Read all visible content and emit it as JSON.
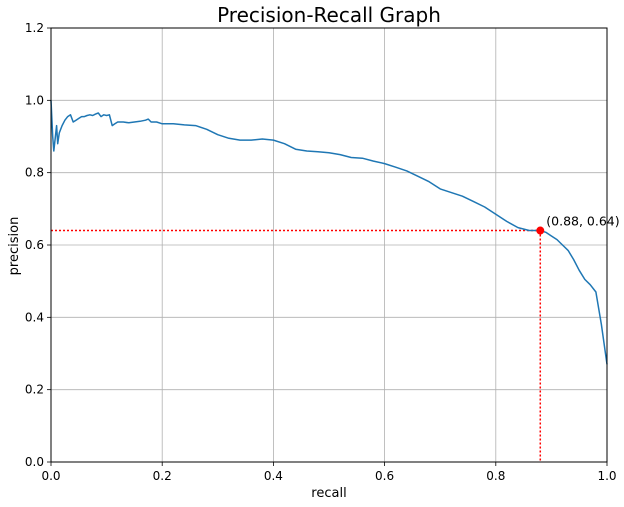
{
  "chart_data": {
    "type": "line",
    "title": "Precision-Recall Graph",
    "xlabel": "recall",
    "ylabel": "precision",
    "xlim": [
      0,
      1
    ],
    "ylim": [
      0,
      1.2
    ],
    "xticks": [
      "0.0",
      "0.2",
      "0.4",
      "0.6",
      "0.8",
      "1.0"
    ],
    "yticks": [
      "0.0",
      "0.2",
      "0.4",
      "0.6",
      "0.8",
      "1.0",
      "1.2"
    ],
    "grid": true,
    "series": [
      {
        "color": "#1f77b4",
        "x": [
          0.0,
          0.003,
          0.005,
          0.008,
          0.01,
          0.012,
          0.015,
          0.02,
          0.025,
          0.03,
          0.035,
          0.04,
          0.045,
          0.05,
          0.055,
          0.06,
          0.065,
          0.07,
          0.075,
          0.08,
          0.085,
          0.09,
          0.095,
          0.1,
          0.105,
          0.11,
          0.115,
          0.12,
          0.13,
          0.14,
          0.15,
          0.16,
          0.17,
          0.175,
          0.18,
          0.19,
          0.2,
          0.22,
          0.24,
          0.26,
          0.28,
          0.3,
          0.32,
          0.34,
          0.36,
          0.38,
          0.4,
          0.42,
          0.44,
          0.46,
          0.48,
          0.5,
          0.52,
          0.54,
          0.56,
          0.58,
          0.6,
          0.62,
          0.64,
          0.66,
          0.68,
          0.7,
          0.72,
          0.74,
          0.76,
          0.78,
          0.8,
          0.82,
          0.84,
          0.86,
          0.88,
          0.89,
          0.9,
          0.91,
          0.92,
          0.93,
          0.94,
          0.95,
          0.96,
          0.97,
          0.98,
          0.99,
          1.0
        ],
        "y": [
          1.0,
          0.9,
          0.86,
          0.9,
          0.93,
          0.88,
          0.91,
          0.93,
          0.945,
          0.955,
          0.96,
          0.94,
          0.945,
          0.95,
          0.955,
          0.955,
          0.958,
          0.96,
          0.958,
          0.962,
          0.965,
          0.955,
          0.96,
          0.958,
          0.96,
          0.93,
          0.935,
          0.94,
          0.94,
          0.938,
          0.94,
          0.942,
          0.945,
          0.948,
          0.94,
          0.94,
          0.935,
          0.935,
          0.932,
          0.93,
          0.92,
          0.905,
          0.895,
          0.89,
          0.89,
          0.893,
          0.89,
          0.88,
          0.865,
          0.86,
          0.858,
          0.855,
          0.85,
          0.842,
          0.84,
          0.832,
          0.825,
          0.815,
          0.805,
          0.79,
          0.775,
          0.755,
          0.745,
          0.735,
          0.72,
          0.705,
          0.685,
          0.665,
          0.648,
          0.64,
          0.64,
          0.635,
          0.625,
          0.615,
          0.6,
          0.585,
          0.56,
          0.53,
          0.505,
          0.49,
          0.47,
          0.38,
          0.27
        ]
      }
    ],
    "highlight": {
      "x": 0.88,
      "y": 0.64,
      "label": "(0.88, 0.64)",
      "color": "#ff0000"
    }
  }
}
